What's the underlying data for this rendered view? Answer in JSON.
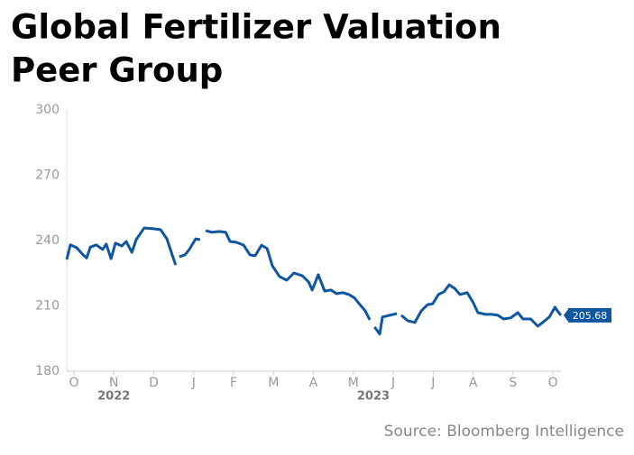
{
  "chart_data": {
    "type": "line",
    "title_lines": [
      "Global Fertilizer Valuation",
      "Peer Group"
    ],
    "source": "Source: Bloomberg Intelligence",
    "x": [
      -0.18,
      -0.09,
      0.07,
      0.23,
      0.32,
      0.41,
      0.56,
      0.72,
      0.81,
      0.93,
      1.04,
      1.2,
      1.31,
      1.45,
      1.56,
      1.76,
      1.99,
      2.17,
      2.33,
      2.44,
      2.55,
      2.6,
      2.64,
      2.78,
      2.89,
      3.05,
      3.16,
      3.23,
      3.3,
      3.46,
      3.64,
      3.8,
      3.91,
      4.07,
      4.25,
      4.41,
      4.54,
      4.7,
      4.84,
      4.97,
      5.15,
      5.33,
      5.51,
      5.72,
      5.88,
      5.97,
      6.12,
      6.28,
      6.44,
      6.58,
      6.73,
      6.89,
      7.03,
      7.14,
      7.3,
      7.41,
      7.46,
      7.53,
      7.66,
      7.73,
      7.91,
      8.09,
      8.14,
      8.2,
      8.36,
      8.54,
      8.7,
      8.86,
      8.99,
      9.13,
      9.27,
      9.4,
      9.54,
      9.67,
      9.85,
      9.99,
      10.12,
      10.31,
      10.46,
      10.62,
      10.76,
      10.94,
      11.12,
      11.25,
      11.44,
      11.62,
      11.77,
      11.91,
      12.05,
      12.11,
      12.2
    ],
    "series": [
      {
        "color": "#0e56a0",
        "values": [
          231.3,
          238,
          236.7,
          233.4,
          232,
          237,
          238,
          235.9,
          238.4,
          231.7,
          238.8,
          237.5,
          239.6,
          234.6,
          240.4,
          245.8,
          245.4,
          245,
          240.8,
          234.6,
          228.8,
          null,
          232.6,
          233.4,
          235.9,
          240.8,
          240.4,
          null,
          244.6,
          243.8,
          244.2,
          243.8,
          239.6,
          239.2,
          237.9,
          233.4,
          233,
          237.9,
          236.3,
          228.4,
          223.5,
          221.8,
          225.1,
          223.8,
          221,
          217.3,
          224.3,
          216.8,
          217.3,
          215.6,
          216.1,
          215.2,
          213.6,
          211.1,
          207.7,
          203.6,
          null,
          200.3,
          197,
          204.9,
          205.7,
          206.5,
          null,
          205.7,
          203.2,
          202.4,
          207.7,
          210.6,
          211,
          215.2,
          216.5,
          219.7,
          218,
          215.2,
          216.1,
          211.9,
          206.9,
          206.1,
          206.1,
          205.7,
          204,
          204.5,
          206.9,
          204,
          204,
          200.7,
          202.8,
          204.9,
          209.4,
          207.7,
          205.68
        ]
      }
    ],
    "end_label": "205.68",
    "xlim": [
      -0.18,
      12.2
    ],
    "xticks": [
      {
        "value": 0,
        "label": "O"
      },
      {
        "value": 1,
        "label": "N"
      },
      {
        "value": 2,
        "label": "D"
      },
      {
        "value": 3,
        "label": "J"
      },
      {
        "value": 4,
        "label": "F"
      },
      {
        "value": 5,
        "label": "M"
      },
      {
        "value": 6,
        "label": "A"
      },
      {
        "value": 7,
        "label": "M"
      },
      {
        "value": 8,
        "label": "J"
      },
      {
        "value": 9,
        "label": "J"
      },
      {
        "value": 10,
        "label": "A"
      },
      {
        "value": 11,
        "label": "S"
      },
      {
        "value": 12,
        "label": "O"
      }
    ],
    "x_group_labels": [
      {
        "value": 1,
        "label": "2022"
      },
      {
        "value": 7.5,
        "label": "2023"
      }
    ],
    "ylim": [
      180,
      300
    ],
    "yticks": [
      180,
      210,
      240,
      270,
      300
    ],
    "grid": false
  }
}
